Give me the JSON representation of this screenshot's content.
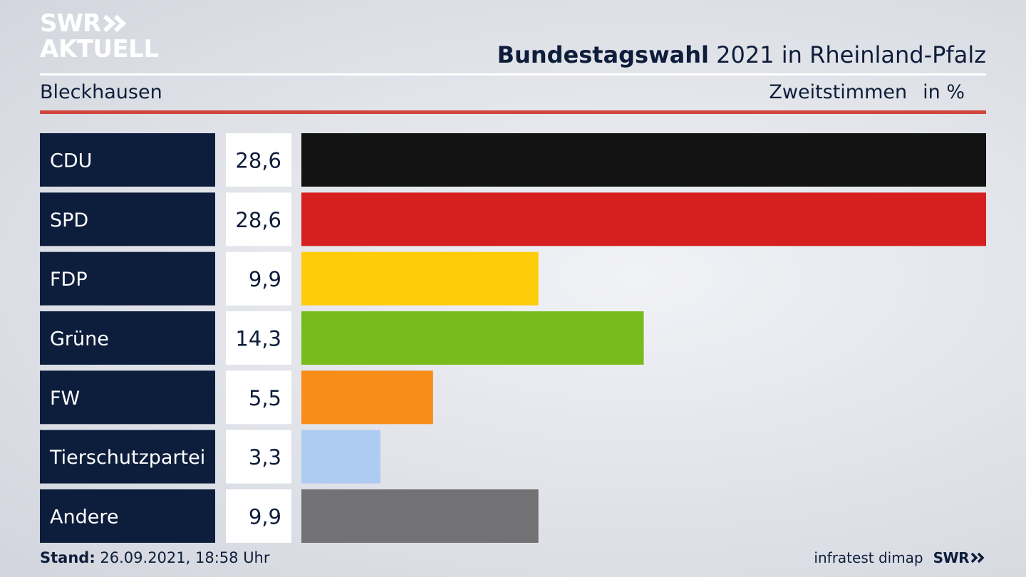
{
  "brand": {
    "line1": "SWR",
    "line2": "AKTUELL",
    "footer_brand": "SWR"
  },
  "header": {
    "title_bold": "Bundestagswahl",
    "title_rest": "2021 in Rheinland-Pfalz",
    "location": "Bleckhausen",
    "measure": "Zweitstimmen",
    "unit": "in %"
  },
  "footer": {
    "stand_label": "Stand:",
    "stand_value": "26.09.2021, 18:58 Uhr",
    "source": "infratest dimap"
  },
  "colors": {
    "label_bg": "#0d1e3c",
    "value_bg": "#ffffff",
    "accent_red": "#d1453b"
  },
  "chart_data": {
    "type": "bar",
    "orientation": "horizontal",
    "categories": [
      "CDU",
      "SPD",
      "FDP",
      "Grüne",
      "FW",
      "Tierschutzpartei",
      "Andere"
    ],
    "values": [
      28.6,
      28.6,
      9.9,
      14.3,
      5.5,
      3.3,
      9.9
    ],
    "value_labels": [
      "28,6",
      "28,6",
      "9,9",
      "14,3",
      "5,5",
      "3,3",
      "9,9"
    ],
    "bar_colors": [
      "#131313",
      "#d62020",
      "#ffcc0a",
      "#78bc1b",
      "#fa8c1a",
      "#aecbf2",
      "#727274"
    ],
    "xlim": [
      0,
      28.6
    ]
  }
}
